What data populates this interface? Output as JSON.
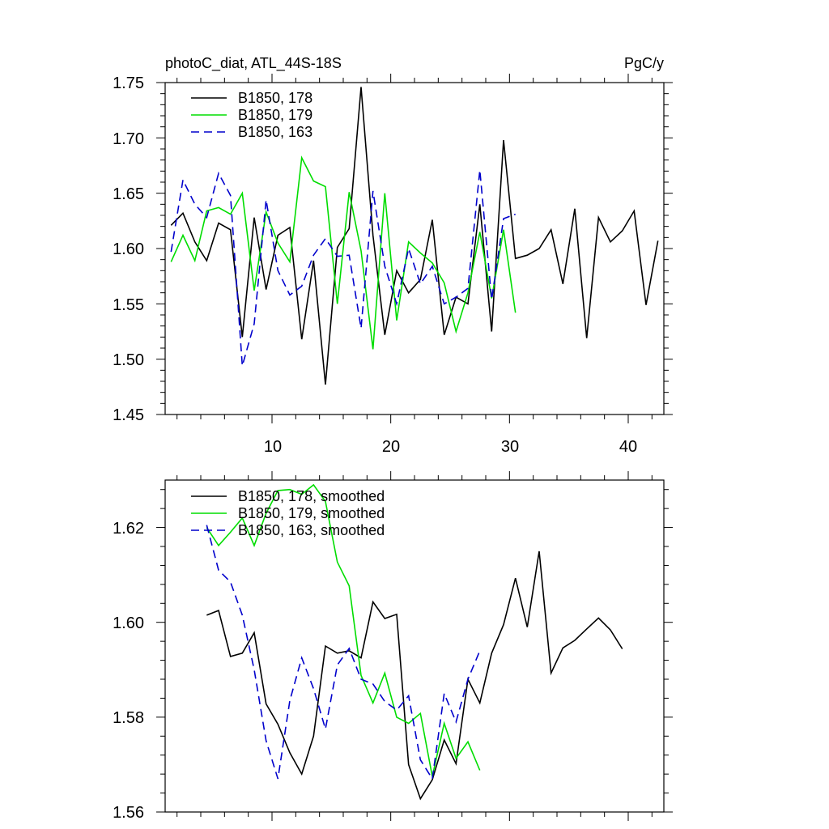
{
  "colors": {
    "s178": "#000000",
    "s179": "#00dd00",
    "s163": "#0000cc"
  },
  "chart_data": [
    {
      "type": "line",
      "title": "photoC_diat, ATL_44S-18S",
      "units": "PgC/y",
      "xlim": [
        1,
        43
      ],
      "ylim": [
        1.45,
        1.75
      ],
      "xticks": [
        10,
        20,
        30,
        40
      ],
      "yticks": [
        1.45,
        1.5,
        1.55,
        1.6,
        1.65,
        1.7,
        1.75
      ],
      "ytick_labels": [
        "1.45",
        "1.50",
        "1.55",
        "1.60",
        "1.65",
        "1.70",
        "1.75"
      ],
      "legend": "top-left",
      "series": [
        {
          "name": "B1850, 178",
          "color": "#000000",
          "dash": "",
          "x": [
            1.5,
            2.5,
            3.5,
            4.5,
            5.5,
            6.5,
            7.5,
            8.5,
            9.5,
            10.5,
            11.5,
            12.5,
            13.5,
            14.5,
            15.5,
            16.5,
            17.5,
            18.5,
            19.5,
            20.5,
            21.5,
            22.5,
            23.5,
            24.5,
            25.5,
            26.5,
            27.5,
            28.5,
            29.5,
            30.5,
            31.5,
            32.5,
            33.5,
            34.5,
            35.5,
            36.5,
            37.5,
            38.5,
            39.5,
            40.5,
            41.5,
            42.5
          ],
          "y": [
            1.621,
            1.632,
            1.606,
            1.589,
            1.623,
            1.617,
            1.52,
            1.628,
            1.563,
            1.612,
            1.619,
            1.518,
            1.589,
            1.477,
            1.601,
            1.618,
            1.746,
            1.612,
            1.522,
            1.58,
            1.56,
            1.572,
            1.626,
            1.522,
            1.556,
            1.55,
            1.64,
            1.525,
            1.698,
            1.591,
            1.594,
            1.6,
            1.617,
            1.568,
            1.636,
            1.519,
            1.628,
            1.606,
            1.616,
            1.634,
            1.549,
            1.607
          ]
        },
        {
          "name": "B1850, 179",
          "color": "#00dd00",
          "dash": "",
          "x": [
            1.5,
            2.5,
            3.5,
            4.5,
            5.5,
            6.5,
            7.5,
            8.5,
            9.5,
            10.5,
            11.5,
            12.5,
            13.5,
            14.5,
            15.5,
            16.5,
            17.5,
            18.5,
            19.5,
            20.5,
            21.5,
            22.5,
            23.5,
            24.5,
            25.5,
            26.5,
            27.5,
            28.5,
            29.5,
            30.5
          ],
          "y": [
            1.588,
            1.612,
            1.589,
            1.634,
            1.637,
            1.631,
            1.65,
            1.562,
            1.633,
            1.605,
            1.588,
            1.682,
            1.661,
            1.656,
            1.55,
            1.651,
            1.598,
            1.509,
            1.65,
            1.535,
            1.606,
            1.596,
            1.587,
            1.569,
            1.525,
            1.56,
            1.615,
            1.555,
            1.617,
            1.542
          ]
        },
        {
          "name": "B1850, 163",
          "color": "#0000cc",
          "dash": "10,6",
          "x": [
            1.5,
            2.5,
            3.5,
            4.5,
            5.5,
            6.5,
            7.5,
            8.5,
            9.5,
            10.5,
            11.5,
            12.5,
            13.5,
            14.5,
            15.5,
            16.5,
            17.5,
            18.5,
            19.5,
            20.5,
            21.5,
            22.5,
            23.5,
            24.5,
            25.5,
            26.5,
            27.5,
            28.5,
            29.5,
            30.5
          ],
          "y": [
            1.597,
            1.662,
            1.64,
            1.628,
            1.668,
            1.648,
            1.494,
            1.532,
            1.644,
            1.58,
            1.558,
            1.566,
            1.594,
            1.609,
            1.593,
            1.594,
            1.528,
            1.652,
            1.584,
            1.55,
            1.6,
            1.568,
            1.584,
            1.55,
            1.556,
            1.564,
            1.671,
            1.554,
            1.627,
            1.631
          ]
        }
      ]
    },
    {
      "type": "line",
      "xlim": [
        1,
        43
      ],
      "ylim": [
        1.56,
        1.63
      ],
      "xticks": [
        10,
        20,
        30,
        40
      ],
      "yticks": [
        1.56,
        1.58,
        1.6,
        1.62
      ],
      "ytick_labels": [
        "1.56",
        "1.58",
        "1.60",
        "1.62"
      ],
      "legend": "top-left",
      "series": [
        {
          "name": "B1850, 178, smoothed",
          "color": "#000000",
          "dash": "",
          "x": [
            4.5,
            5.5,
            6.5,
            7.5,
            8.5,
            9.5,
            10.5,
            11.5,
            12.5,
            13.5,
            14.5,
            15.5,
            16.5,
            17.5,
            18.5,
            19.5,
            20.5,
            21.5,
            22.5,
            23.5,
            24.5,
            25.5,
            26.5,
            27.5,
            28.5,
            29.5,
            30.5,
            31.5,
            32.5,
            33.5,
            34.5,
            35.5,
            36.5,
            37.5,
            38.5,
            39.5
          ],
          "y": [
            1.6015,
            1.6025,
            1.5928,
            1.5935,
            1.5978,
            1.5828,
            1.5785,
            1.5725,
            1.568,
            1.576,
            1.595,
            1.5935,
            1.594,
            1.5925,
            1.6043,
            1.6008,
            1.6017,
            1.57,
            1.5628,
            1.5668,
            1.5752,
            1.5702,
            1.588,
            1.583,
            1.5935,
            1.5995,
            1.6093,
            1.599,
            1.615,
            1.5893,
            1.5946,
            1.5962,
            1.5986,
            1.6009,
            1.5984,
            1.5944
          ]
        },
        {
          "name": "B1850, 179, smoothed",
          "color": "#00dd00",
          "dash": "",
          "x": [
            4.5,
            5.5,
            6.5,
            7.5,
            8.5,
            9.5,
            10.5,
            11.5,
            12.5,
            13.5,
            14.5,
            15.5,
            16.5,
            17.5,
            18.5,
            19.5,
            20.5,
            21.5,
            22.5,
            23.5,
            24.5,
            25.5,
            26.5,
            27.5
          ],
          "y": [
            1.62,
            1.6162,
            1.619,
            1.622,
            1.6162,
            1.623,
            1.6278,
            1.628,
            1.627,
            1.629,
            1.6255,
            1.6127,
            1.6077,
            1.5888,
            1.583,
            1.5893,
            1.58,
            1.5787,
            1.5808,
            1.5675,
            1.5787,
            1.5713,
            1.5748,
            1.5688
          ]
        },
        {
          "name": "B1850, 163, smoothed",
          "color": "#0000cc",
          "dash": "10,6",
          "x": [
            4.5,
            5.5,
            6.5,
            7.5,
            8.5,
            9.5,
            10.5,
            11.5,
            12.5,
            13.5,
            14.5,
            15.5,
            16.5,
            17.5,
            18.5,
            19.5,
            20.5,
            21.5,
            22.5,
            23.5,
            24.5,
            25.5,
            26.5,
            27.5
          ],
          "y": [
            1.6205,
            1.611,
            1.6085,
            1.6015,
            1.59,
            1.575,
            1.567,
            1.5835,
            1.5925,
            1.586,
            1.5775,
            1.591,
            1.5945,
            1.588,
            1.587,
            1.5833,
            1.5815,
            1.5845,
            1.571,
            1.567,
            1.585,
            1.579,
            1.588,
            1.594
          ]
        }
      ]
    }
  ]
}
